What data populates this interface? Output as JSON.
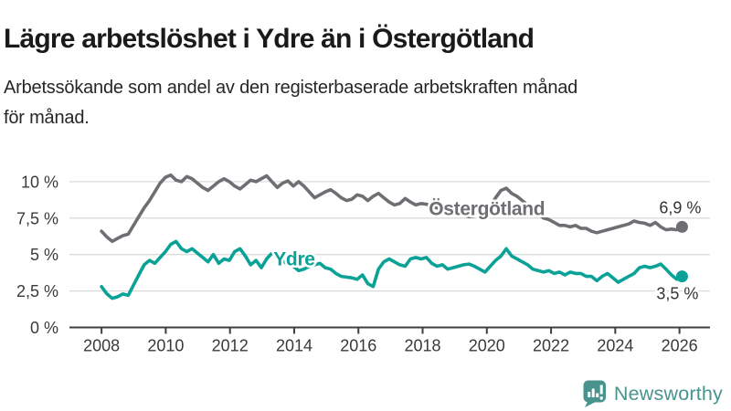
{
  "header": {
    "title": "Lägre arbetslöshet i Ydre än i Östergötland",
    "subtitle_line1": "Arbetssökande som andel av den registerbaserade arbetskraften månad",
    "subtitle_line2": "för månad."
  },
  "colors": {
    "ostergotland_line": "#6F6E73",
    "ydre_line": "#0AA296",
    "grid": "#DBDBDB",
    "axis": "#3F3F3F",
    "tick_text": "#3A3A3A",
    "value_text": "#333333",
    "title_text": "#1A1A1A",
    "logo_teal": "#48938D"
  },
  "chart_data": {
    "type": "line",
    "x_start": 2008.0,
    "x_end": 2026.08,
    "x_unit": "year (monthly data)",
    "y_unit": "%",
    "xlim": [
      2007.0,
      2026.95
    ],
    "ylim": [
      0,
      10.6
    ],
    "grid": true,
    "x_ticks": [
      "2008",
      "2010",
      "2012",
      "2014",
      "2016",
      "2018",
      "2020",
      "2022",
      "2024",
      "2026"
    ],
    "x_tick_years": [
      2008,
      2010,
      2012,
      2014,
      2016,
      2018,
      2020,
      2022,
      2024,
      2026
    ],
    "y_ticks": [
      {
        "value": 0,
        "label": "0 %"
      },
      {
        "value": 2.5,
        "label": "2,5 %"
      },
      {
        "value": 5,
        "label": "5 %"
      },
      {
        "value": 7.5,
        "label": "7,5 %"
      },
      {
        "value": 10,
        "label": "10 %"
      }
    ],
    "series": [
      {
        "name": "Östergötland",
        "color": "#6F6E73",
        "end_label": "6,9 %",
        "end_value": 6.9,
        "label_pos": {
          "year": 2020.0,
          "value": 7.7
        },
        "end_label_offset": {
          "dx": 21,
          "dy": -15
        },
        "values": [
          6.6,
          6.2,
          5.9,
          6.1,
          6.3,
          6.4,
          7.0,
          7.6,
          8.2,
          8.7,
          9.3,
          9.9,
          10.3,
          10.45,
          10.1,
          10.0,
          10.35,
          10.2,
          9.9,
          9.6,
          9.4,
          9.7,
          10.0,
          10.2,
          10.0,
          9.7,
          9.5,
          9.8,
          10.1,
          10.0,
          10.2,
          10.4,
          10.0,
          9.6,
          9.9,
          10.05,
          9.7,
          10.0,
          9.7,
          9.3,
          8.9,
          9.1,
          9.3,
          9.45,
          9.2,
          8.9,
          8.7,
          8.8,
          9.1,
          9.0,
          8.7,
          9.0,
          9.2,
          8.9,
          8.6,
          8.4,
          8.5,
          8.85,
          8.6,
          8.4,
          8.5,
          8.45,
          8.3,
          8.2,
          8.1,
          7.95,
          7.9,
          7.8,
          7.7,
          7.6,
          7.65,
          7.75,
          7.9,
          8.3,
          8.9,
          9.4,
          9.55,
          9.2,
          9.0,
          8.7,
          8.4,
          8.1,
          7.8,
          7.5,
          7.4,
          7.2,
          7.0,
          7.0,
          6.9,
          7.0,
          6.8,
          6.8,
          6.6,
          6.5,
          6.6,
          6.7,
          6.8,
          6.9,
          7.0,
          7.1,
          7.3,
          7.2,
          7.15,
          7.0,
          7.2,
          6.9,
          6.7,
          6.75,
          6.7,
          6.9
        ]
      },
      {
        "name": "Ydre",
        "color": "#0AA296",
        "end_label": "3,5 %",
        "end_value": 3.5,
        "label_pos": {
          "year": 2014.0,
          "value": 4.25
        },
        "end_label_offset": {
          "dx": 18,
          "dy": 25
        },
        "values": [
          2.8,
          2.3,
          2.0,
          2.1,
          2.3,
          2.2,
          2.9,
          3.6,
          4.3,
          4.6,
          4.4,
          4.8,
          5.2,
          5.7,
          5.9,
          5.4,
          5.2,
          5.4,
          5.1,
          4.8,
          4.5,
          5.0,
          4.4,
          4.7,
          4.6,
          5.2,
          5.4,
          4.9,
          4.3,
          4.6,
          4.1,
          4.7,
          5.1,
          5.0,
          4.6,
          4.3,
          4.2,
          3.9,
          4.0,
          4.2,
          4.3,
          4.4,
          4.1,
          4.0,
          3.7,
          3.5,
          3.45,
          3.4,
          3.3,
          3.6,
          3.0,
          2.8,
          4.0,
          4.5,
          4.7,
          4.5,
          4.3,
          4.2,
          4.7,
          4.8,
          4.7,
          4.8,
          4.4,
          4.2,
          4.3,
          4.0,
          4.1,
          4.2,
          4.3,
          4.35,
          4.2,
          4.0,
          3.8,
          4.2,
          4.6,
          4.9,
          5.4,
          4.9,
          4.7,
          4.5,
          4.3,
          4.0,
          3.9,
          3.8,
          3.9,
          3.7,
          3.8,
          3.6,
          3.8,
          3.7,
          3.7,
          3.5,
          3.5,
          3.2,
          3.5,
          3.7,
          3.4,
          3.1,
          3.3,
          3.5,
          3.7,
          4.1,
          4.2,
          4.1,
          4.2,
          4.35,
          4.0,
          3.6,
          3.3,
          3.5
        ]
      }
    ]
  },
  "branding": {
    "logo_text": "Newsworthy",
    "logo_icon": "bar-chart-speech-bubble-icon"
  }
}
